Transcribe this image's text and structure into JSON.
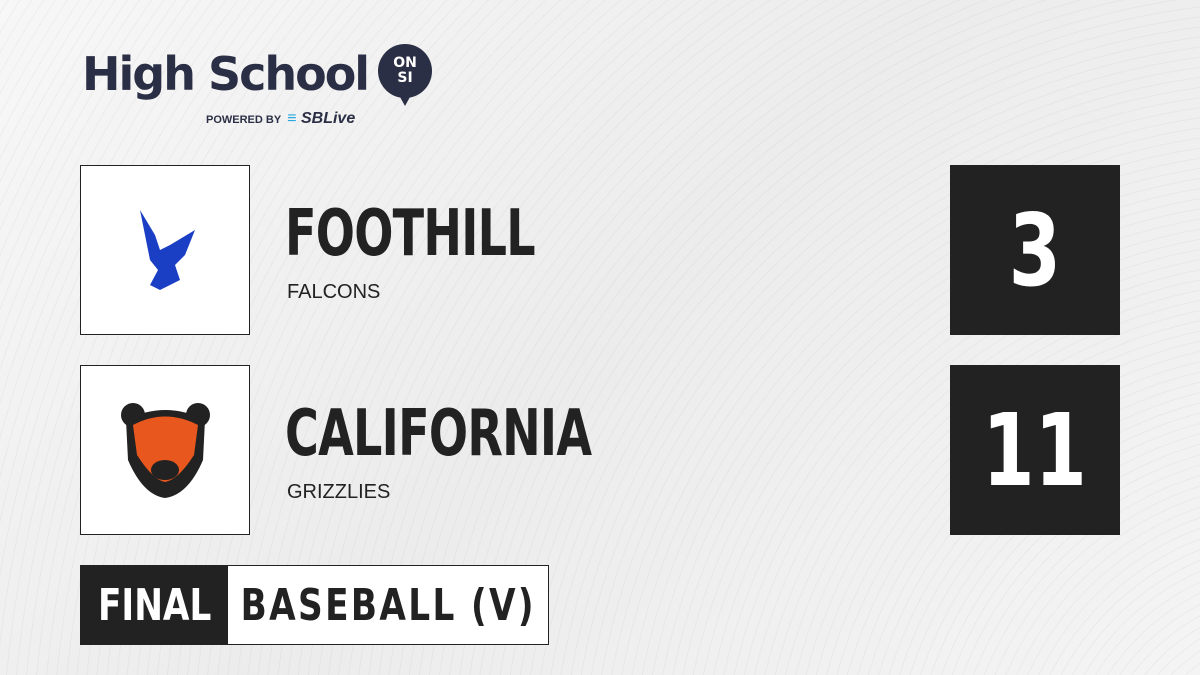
{
  "brand": {
    "title": "High School",
    "badge_top": "ON",
    "badge_bottom": "SI",
    "powered_by": "POWERED BY",
    "partner": "SBLive"
  },
  "teams": [
    {
      "name": "FOOTHILL",
      "mascot": "FALCONS",
      "score": "3",
      "color": "#1a3fc4",
      "logo_icon": "falcon-icon"
    },
    {
      "name": "CALIFORNIA",
      "mascot": "GRIZZLIES",
      "score": "11",
      "color": "#e8571d",
      "logo_icon": "grizzly-icon"
    }
  ],
  "game": {
    "status": "FINAL",
    "sport": "BASEBALL (V)"
  }
}
